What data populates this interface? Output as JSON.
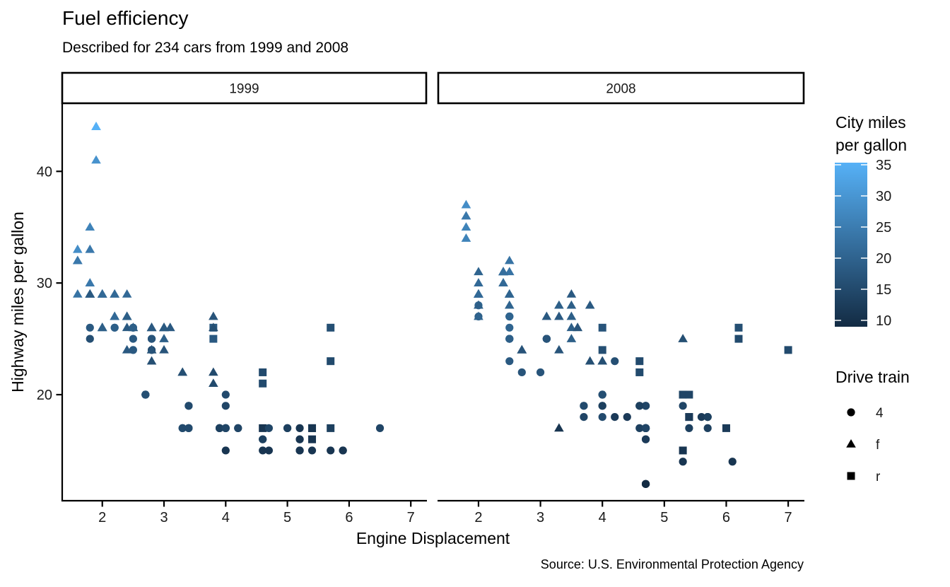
{
  "chart_data": {
    "type": "scatter",
    "title": "Fuel efficiency",
    "subtitle": "Described for 234 cars from 1999 and 2008",
    "caption": "Source: U.S. Environmental Protection Agency",
    "xlabel": "Engine Displacement",
    "ylabel": "Highway miles per gallon",
    "facets": [
      "1999",
      "2008"
    ],
    "x_ticks": [
      2,
      3,
      4,
      5,
      6,
      7
    ],
    "y_ticks": [
      20,
      30,
      40
    ],
    "xlim": [
      1.35,
      7.25
    ],
    "ylim": [
      10.5,
      46.1
    ],
    "grid": "off",
    "background": "#ffffff",
    "color_legend": {
      "title_lines": [
        "City miles",
        "per gallon"
      ],
      "field": "cty",
      "domain": [
        9,
        35
      ],
      "low_color": "#132B43",
      "high_color": "#56B1F7",
      "ticks": [
        35,
        30,
        25,
        20,
        15,
        10
      ]
    },
    "shape_legend": {
      "title": "Drive train",
      "field": "drv",
      "items": [
        {
          "shape": "circle",
          "label": "4"
        },
        {
          "shape": "triangle",
          "label": "f"
        },
        {
          "shape": "square",
          "label": "r"
        }
      ]
    },
    "point_format": [
      "displ",
      "hwy",
      "cty",
      "drv"
    ],
    "points": {
      "1999": [
        [
          1.8,
          29,
          18,
          "f"
        ],
        [
          1.8,
          29,
          21,
          "f"
        ],
        [
          2.8,
          26,
          16,
          "f"
        ],
        [
          2.8,
          26,
          18,
          "f"
        ],
        [
          1.8,
          26,
          18,
          "4"
        ],
        [
          1.8,
          25,
          16,
          "4"
        ],
        [
          2.8,
          25,
          15,
          "4"
        ],
        [
          2.8,
          25,
          17,
          "4"
        ],
        [
          2.8,
          24,
          15,
          "4"
        ],
        [
          5.7,
          17,
          13,
          "r"
        ],
        [
          5.7,
          26,
          16,
          "r"
        ],
        [
          5.7,
          23,
          15,
          "r"
        ],
        [
          5.7,
          15,
          11,
          "4"
        ],
        [
          6.5,
          17,
          14,
          "4"
        ],
        [
          2.4,
          27,
          19,
          "f"
        ],
        [
          3.1,
          26,
          18,
          "f"
        ],
        [
          2.4,
          24,
          18,
          "f"
        ],
        [
          3.0,
          24,
          17,
          "f"
        ],
        [
          3.3,
          22,
          16,
          "f"
        ],
        [
          3.3,
          22,
          16,
          "f"
        ],
        [
          3.8,
          22,
          15,
          "f"
        ],
        [
          3.8,
          21,
          15,
          "f"
        ],
        [
          3.9,
          17,
          13,
          "4"
        ],
        [
          3.9,
          17,
          14,
          "4"
        ],
        [
          5.2,
          17,
          11,
          "4"
        ],
        [
          5.2,
          15,
          11,
          "4"
        ],
        [
          3.9,
          17,
          13,
          "4"
        ],
        [
          5.2,
          16,
          11,
          "4"
        ],
        [
          5.9,
          15,
          11,
          "4"
        ],
        [
          5.2,
          15,
          11,
          "4"
        ],
        [
          5.2,
          16,
          11,
          "4"
        ],
        [
          5.9,
          15,
          11,
          "4"
        ],
        [
          4.6,
          17,
          11,
          "r"
        ],
        [
          5.4,
          17,
          11,
          "r"
        ],
        [
          4.0,
          17,
          14,
          "4"
        ],
        [
          4.0,
          17,
          15,
          "4"
        ],
        [
          4.0,
          17,
          14,
          "4"
        ],
        [
          5.0,
          17,
          13,
          "4"
        ],
        [
          4.2,
          17,
          14,
          "4"
        ],
        [
          4.2,
          17,
          14,
          "4"
        ],
        [
          4.6,
          16,
          13,
          "4"
        ],
        [
          4.6,
          16,
          13,
          "4"
        ],
        [
          5.4,
          15,
          11,
          "4"
        ],
        [
          3.8,
          26,
          18,
          "r"
        ],
        [
          3.8,
          25,
          18,
          "r"
        ],
        [
          4.6,
          21,
          15,
          "r"
        ],
        [
          4.6,
          22,
          15,
          "r"
        ],
        [
          1.6,
          33,
          28,
          "f"
        ],
        [
          1.6,
          32,
          24,
          "f"
        ],
        [
          1.6,
          32,
          25,
          "f"
        ],
        [
          1.6,
          29,
          23,
          "f"
        ],
        [
          1.6,
          32,
          24,
          "f"
        ],
        [
          2.4,
          26,
          18,
          "f"
        ],
        [
          2.4,
          27,
          18,
          "f"
        ],
        [
          2.5,
          26,
          18,
          "f"
        ],
        [
          2.5,
          26,
          18,
          "f"
        ],
        [
          2.0,
          26,
          19,
          "f"
        ],
        [
          2.0,
          29,
          19,
          "f"
        ],
        [
          4.0,
          20,
          15,
          "4"
        ],
        [
          4.7,
          17,
          14,
          "4"
        ],
        [
          4.0,
          15,
          11,
          "4"
        ],
        [
          4.6,
          15,
          11,
          "4"
        ],
        [
          5.4,
          17,
          11,
          "r"
        ],
        [
          5.4,
          16,
          11,
          "r"
        ],
        [
          4.0,
          19,
          14,
          "4"
        ],
        [
          5.0,
          17,
          13,
          "4"
        ],
        [
          2.4,
          29,
          21,
          "f"
        ],
        [
          2.4,
          27,
          19,
          "f"
        ],
        [
          3.0,
          26,
          18,
          "f"
        ],
        [
          3.0,
          25,
          19,
          "f"
        ],
        [
          3.3,
          17,
          14,
          "4"
        ],
        [
          3.3,
          17,
          15,
          "4"
        ],
        [
          3.1,
          26,
          18,
          "f"
        ],
        [
          3.8,
          26,
          16,
          "f"
        ],
        [
          3.8,
          27,
          17,
          "f"
        ],
        [
          2.5,
          25,
          18,
          "4"
        ],
        [
          2.5,
          24,
          18,
          "4"
        ],
        [
          2.2,
          26,
          21,
          "4"
        ],
        [
          2.2,
          26,
          19,
          "4"
        ],
        [
          2.5,
          26,
          19,
          "4"
        ],
        [
          2.5,
          26,
          19,
          "4"
        ],
        [
          2.7,
          20,
          15,
          "4"
        ],
        [
          2.7,
          20,
          16,
          "4"
        ],
        [
          3.4,
          19,
          15,
          "4"
        ],
        [
          3.4,
          17,
          15,
          "4"
        ],
        [
          2.2,
          29,
          21,
          "f"
        ],
        [
          2.2,
          27,
          21,
          "f"
        ],
        [
          3.0,
          26,
          18,
          "f"
        ],
        [
          3.0,
          26,
          18,
          "f"
        ],
        [
          2.2,
          27,
          21,
          "f"
        ],
        [
          2.2,
          29,
          21,
          "f"
        ],
        [
          3.0,
          26,
          18,
          "f"
        ],
        [
          3.0,
          26,
          18,
          "f"
        ],
        [
          1.8,
          30,
          24,
          "f"
        ],
        [
          1.8,
          33,
          24,
          "f"
        ],
        [
          1.8,
          35,
          26,
          "f"
        ],
        [
          4.7,
          15,
          11,
          "4"
        ],
        [
          2.7,
          20,
          15,
          "4"
        ],
        [
          2.7,
          20,
          16,
          "4"
        ],
        [
          3.4,
          17,
          15,
          "4"
        ],
        [
          3.4,
          19,
          15,
          "4"
        ],
        [
          2.0,
          29,
          21,
          "f"
        ],
        [
          2.0,
          26,
          19,
          "f"
        ],
        [
          2.8,
          24,
          17,
          "f"
        ],
        [
          1.9,
          44,
          33,
          "f"
        ],
        [
          2.0,
          29,
          21,
          "f"
        ],
        [
          2.0,
          26,
          19,
          "f"
        ],
        [
          2.8,
          23,
          16,
          "f"
        ],
        [
          2.8,
          24,
          17,
          "f"
        ],
        [
          1.9,
          44,
          35,
          "f"
        ],
        [
          1.9,
          41,
          29,
          "f"
        ],
        [
          2.0,
          29,
          21,
          "f"
        ],
        [
          2.0,
          26,
          19,
          "f"
        ],
        [
          1.8,
          29,
          21,
          "f"
        ],
        [
          1.8,
          29,
          18,
          "f"
        ],
        [
          2.8,
          26,
          16,
          "f"
        ],
        [
          2.8,
          26,
          18,
          "f"
        ]
      ],
      "2008": [
        [
          2.0,
          31,
          20,
          "f"
        ],
        [
          2.0,
          30,
          21,
          "f"
        ],
        [
          3.1,
          27,
          18,
          "f"
        ],
        [
          2.0,
          28,
          20,
          "4"
        ],
        [
          2.0,
          27,
          19,
          "4"
        ],
        [
          3.1,
          25,
          17,
          "4"
        ],
        [
          3.1,
          25,
          15,
          "4"
        ],
        [
          3.1,
          25,
          17,
          "4"
        ],
        [
          4.2,
          23,
          16,
          "4"
        ],
        [
          5.3,
          20,
          14,
          "r"
        ],
        [
          5.3,
          15,
          11,
          "r"
        ],
        [
          5.3,
          20,
          14,
          "r"
        ],
        [
          6.0,
          17,
          12,
          "r"
        ],
        [
          6.2,
          26,
          16,
          "r"
        ],
        [
          6.2,
          25,
          15,
          "r"
        ],
        [
          7.0,
          24,
          15,
          "r"
        ],
        [
          5.3,
          19,
          14,
          "4"
        ],
        [
          5.3,
          14,
          11,
          "4"
        ],
        [
          2.4,
          30,
          22,
          "f"
        ],
        [
          3.5,
          29,
          18,
          "f"
        ],
        [
          3.6,
          26,
          17,
          "f"
        ],
        [
          3.3,
          24,
          17,
          "f"
        ],
        [
          3.3,
          17,
          11,
          "f"
        ],
        [
          3.8,
          23,
          16,
          "f"
        ],
        [
          4.0,
          23,
          16,
          "f"
        ],
        [
          4.0,
          23,
          16,
          "f"
        ],
        [
          3.7,
          19,
          15,
          "4"
        ],
        [
          3.7,
          18,
          14,
          "4"
        ],
        [
          4.7,
          19,
          14,
          "4"
        ],
        [
          4.7,
          19,
          14,
          "4"
        ],
        [
          4.7,
          12,
          9,
          "4"
        ],
        [
          4.7,
          17,
          13,
          "4"
        ],
        [
          4.7,
          12,
          9,
          "4"
        ],
        [
          4.7,
          17,
          13,
          "4"
        ],
        [
          5.7,
          18,
          13,
          "4"
        ],
        [
          4.7,
          16,
          12,
          "4"
        ],
        [
          4.7,
          12,
          9,
          "4"
        ],
        [
          4.7,
          17,
          13,
          "4"
        ],
        [
          4.7,
          17,
          13,
          "4"
        ],
        [
          4.7,
          16,
          12,
          "4"
        ],
        [
          4.7,
          17,
          13,
          "4"
        ],
        [
          5.7,
          17,
          13,
          "4"
        ],
        [
          5.4,
          18,
          12,
          "r"
        ],
        [
          4.0,
          19,
          13,
          "4"
        ],
        [
          4.6,
          19,
          13,
          "4"
        ],
        [
          4.6,
          17,
          13,
          "4"
        ],
        [
          5.4,
          17,
          13,
          "4"
        ],
        [
          4.0,
          26,
          17,
          "r"
        ],
        [
          4.0,
          24,
          16,
          "r"
        ],
        [
          4.6,
          23,
          15,
          "r"
        ],
        [
          4.6,
          22,
          15,
          "r"
        ],
        [
          5.4,
          20,
          14,
          "r"
        ],
        [
          1.8,
          34,
          26,
          "f"
        ],
        [
          1.8,
          36,
          25,
          "f"
        ],
        [
          1.8,
          36,
          24,
          "f"
        ],
        [
          2.0,
          29,
          21,
          "f"
        ],
        [
          2.4,
          30,
          21,
          "f"
        ],
        [
          2.4,
          31,
          21,
          "f"
        ],
        [
          3.3,
          28,
          19,
          "f"
        ],
        [
          2.0,
          28,
          20,
          "f"
        ],
        [
          2.0,
          27,
          20,
          "f"
        ],
        [
          2.7,
          24,
          17,
          "f"
        ],
        [
          2.7,
          24,
          16,
          "f"
        ],
        [
          2.7,
          24,
          17,
          "f"
        ],
        [
          3.0,
          22,
          17,
          "4"
        ],
        [
          3.7,
          19,
          15,
          "4"
        ],
        [
          4.7,
          12,
          9,
          "4"
        ],
        [
          4.7,
          19,
          14,
          "4"
        ],
        [
          5.7,
          18,
          13,
          "4"
        ],
        [
          6.1,
          14,
          11,
          "4"
        ],
        [
          4.2,
          18,
          12,
          "4"
        ],
        [
          4.4,
          18,
          12,
          "4"
        ],
        [
          5.4,
          18,
          12,
          "r"
        ],
        [
          4.0,
          19,
          13,
          "4"
        ],
        [
          4.6,
          19,
          13,
          "4"
        ],
        [
          2.5,
          31,
          23,
          "f"
        ],
        [
          2.5,
          32,
          23,
          "f"
        ],
        [
          3.5,
          27,
          19,
          "f"
        ],
        [
          3.5,
          26,
          19,
          "f"
        ],
        [
          3.5,
          25,
          19,
          "f"
        ],
        [
          4.0,
          20,
          14,
          "4"
        ],
        [
          5.6,
          18,
          12,
          "4"
        ],
        [
          3.8,
          28,
          18,
          "f"
        ],
        [
          5.3,
          25,
          16,
          "f"
        ],
        [
          2.5,
          27,
          20,
          "4"
        ],
        [
          2.5,
          25,
          19,
          "4"
        ],
        [
          2.5,
          26,
          20,
          "4"
        ],
        [
          2.5,
          23,
          18,
          "4"
        ],
        [
          2.5,
          25,
          20,
          "4"
        ],
        [
          2.5,
          27,
          20,
          "4"
        ],
        [
          2.5,
          25,
          19,
          "4"
        ],
        [
          2.5,
          27,
          20,
          "4"
        ],
        [
          4.0,
          20,
          16,
          "4"
        ],
        [
          4.7,
          17,
          14,
          "4"
        ],
        [
          2.4,
          31,
          21,
          "f"
        ],
        [
          2.4,
          31,
          21,
          "f"
        ],
        [
          3.5,
          28,
          19,
          "f"
        ],
        [
          2.4,
          31,
          21,
          "f"
        ],
        [
          2.4,
          31,
          22,
          "f"
        ],
        [
          3.3,
          27,
          18,
          "f"
        ],
        [
          1.8,
          37,
          28,
          "f"
        ],
        [
          1.8,
          35,
          26,
          "f"
        ],
        [
          5.7,
          18,
          13,
          "4"
        ],
        [
          2.7,
          22,
          17,
          "4"
        ],
        [
          4.0,
          18,
          15,
          "4"
        ],
        [
          4.0,
          20,
          16,
          "4"
        ],
        [
          2.0,
          29,
          21,
          "f"
        ],
        [
          2.0,
          29,
          22,
          "f"
        ],
        [
          2.0,
          29,
          22,
          "f"
        ],
        [
          2.0,
          29,
          21,
          "f"
        ],
        [
          2.5,
          29,
          21,
          "f"
        ],
        [
          2.5,
          29,
          21,
          "f"
        ],
        [
          2.5,
          28,
          20,
          "f"
        ],
        [
          2.5,
          29,
          20,
          "f"
        ],
        [
          2.0,
          28,
          19,
          "f"
        ],
        [
          2.0,
          29,
          21,
          "f"
        ],
        [
          3.6,
          26,
          17,
          "f"
        ]
      ]
    }
  }
}
